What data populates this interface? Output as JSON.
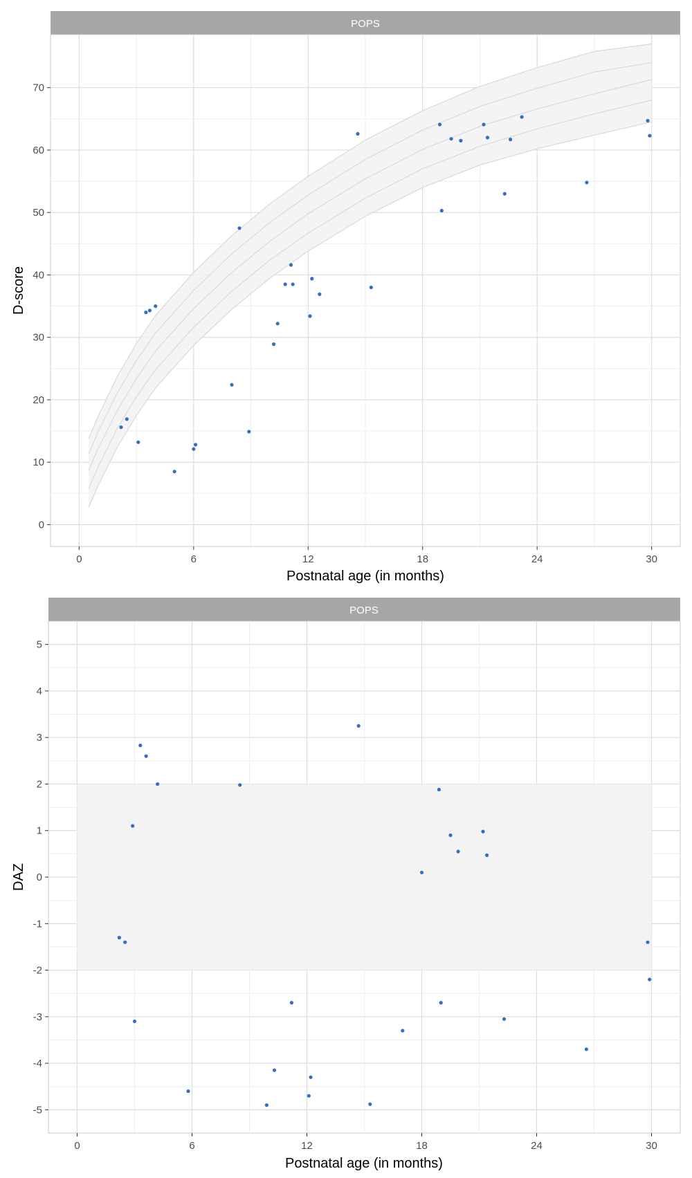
{
  "colors": {
    "points": "#1f5fbf",
    "strip": "#a6a6a6",
    "strip_text": "#ffffff",
    "grid_major": "#dcdcdc",
    "grid_minor": "#eeeeee",
    "band": "#f2f2f2",
    "reference_curve": "#d9d9d9"
  },
  "chart_data": [
    {
      "type": "scatter",
      "facet_label": "POPS",
      "xlabel": "Postnatal age (in months)",
      "ylabel": "D-score",
      "xlim": [
        -1.5,
        31.5
      ],
      "ylim": [
        -3.5,
        78.5
      ],
      "xticks": [
        0,
        6,
        12,
        18,
        24,
        30
      ],
      "xtick_labels": [
        "0",
        "6",
        "12",
        "18",
        "24",
        "30"
      ],
      "yticks": [
        0,
        10,
        20,
        30,
        40,
        50,
        60,
        70
      ],
      "ytick_labels": [
        "0",
        "10",
        "20",
        "30",
        "40",
        "50",
        "60",
        "70"
      ],
      "grid": true,
      "reference_band": {
        "x": [
          0.5,
          1,
          2,
          3,
          4,
          6,
          8,
          10,
          12,
          15,
          18,
          21,
          24,
          27,
          30
        ],
        "curves": [
          [
            2.8,
            6.3,
            12.4,
            17.5,
            21.9,
            28.7,
            34.5,
            39.5,
            43.8,
            49.4,
            54.0,
            57.6,
            60.2,
            62.4,
            64.5
          ],
          [
            5.8,
            9.3,
            15.4,
            20.5,
            24.8,
            31.6,
            37.4,
            42.4,
            46.7,
            52.3,
            57.0,
            60.6,
            63.4,
            65.8,
            68.0
          ],
          [
            8.7,
            12.2,
            18.3,
            23.4,
            27.8,
            34.6,
            40.4,
            45.4,
            49.8,
            55.4,
            60.1,
            63.8,
            66.6,
            69.0,
            71.3
          ],
          [
            11.3,
            14.9,
            21.1,
            26.3,
            30.7,
            37.5,
            43.4,
            48.4,
            52.8,
            58.5,
            63.2,
            67.0,
            69.9,
            72.5,
            74.0
          ],
          [
            13.8,
            17.4,
            23.7,
            29.0,
            33.5,
            40.4,
            46.3,
            51.4,
            55.8,
            61.6,
            66.3,
            70.2,
            73.2,
            75.8,
            77.0
          ]
        ]
      },
      "clusters": [
        {
          "x": 2.2,
          "y": 15.6
        },
        {
          "x": 2.5,
          "y": 16.9
        },
        {
          "x": 3.1,
          "y": 13.2
        },
        {
          "x": 3.5,
          "y": 34.0
        },
        {
          "x": 3.7,
          "y": 34.3
        },
        {
          "x": 4.0,
          "y": 35.0
        },
        {
          "x": 5.0,
          "y": 8.5
        },
        {
          "x": 6.0,
          "y": 12.1
        },
        {
          "x": 6.1,
          "y": 12.8
        },
        {
          "x": 8.0,
          "y": 22.4
        },
        {
          "x": 8.4,
          "y": 47.5
        },
        {
          "x": 8.9,
          "y": 14.9
        },
        {
          "x": 10.2,
          "y": 28.9
        },
        {
          "x": 10.4,
          "y": 32.2
        },
        {
          "x": 10.8,
          "y": 38.5
        },
        {
          "x": 11.1,
          "y": 41.6
        },
        {
          "x": 11.2,
          "y": 38.5
        },
        {
          "x": 12.1,
          "y": 33.4
        },
        {
          "x": 12.2,
          "y": 39.4
        },
        {
          "x": 12.6,
          "y": 36.9
        },
        {
          "x": 14.6,
          "y": 62.6
        },
        {
          "x": 15.3,
          "y": 38.0
        },
        {
          "x": 18.9,
          "y": 64.1
        },
        {
          "x": 19.0,
          "y": 50.3
        },
        {
          "x": 19.5,
          "y": 61.8
        },
        {
          "x": 20.0,
          "y": 61.5
        },
        {
          "x": 21.2,
          "y": 64.1
        },
        {
          "x": 21.4,
          "y": 62.0
        },
        {
          "x": 22.3,
          "y": 53.0
        },
        {
          "x": 22.6,
          "y": 61.7
        },
        {
          "x": 23.2,
          "y": 65.3
        },
        {
          "x": 26.6,
          "y": 54.8
        },
        {
          "x": 29.8,
          "y": 64.7
        },
        {
          "x": 29.9,
          "y": 62.3
        }
      ]
    },
    {
      "type": "scatter",
      "facet_label": "POPS",
      "xlabel": "Postnatal age (in months)",
      "ylabel": "DAZ",
      "xlim": [
        -1.5,
        31.5
      ],
      "ylim": [
        -5.5,
        5.5
      ],
      "xticks": [
        0,
        6,
        12,
        18,
        24,
        30
      ],
      "xtick_labels": [
        "0",
        "6",
        "12",
        "18",
        "24",
        "30"
      ],
      "yticks": [
        -5,
        -4,
        -3,
        -2,
        -1,
        0,
        1,
        2,
        3,
        4,
        5
      ],
      "ytick_labels": [
        "-5",
        "-4",
        "-3",
        "-2",
        "-1",
        "0",
        "1",
        "2",
        "3",
        "4",
        "5"
      ],
      "grid": true,
      "reference_band": {
        "y_range": [
          -2,
          2
        ]
      },
      "clusters": [
        {
          "x": 2.2,
          "y": -1.3
        },
        {
          "x": 2.5,
          "y": -1.4
        },
        {
          "x": 2.9,
          "y": 1.1
        },
        {
          "x": 3.0,
          "y": -3.1
        },
        {
          "x": 3.3,
          "y": 2.83
        },
        {
          "x": 3.6,
          "y": 2.6
        },
        {
          "x": 4.2,
          "y": 2.0
        },
        {
          "x": 5.8,
          "y": -4.6
        },
        {
          "x": 8.5,
          "y": 1.98
        },
        {
          "x": 9.9,
          "y": -4.9
        },
        {
          "x": 10.3,
          "y": -4.15
        },
        {
          "x": 11.2,
          "y": -2.7
        },
        {
          "x": 12.1,
          "y": -4.7
        },
        {
          "x": 12.2,
          "y": -4.3
        },
        {
          "x": 14.7,
          "y": 3.25
        },
        {
          "x": 15.3,
          "y": -4.88
        },
        {
          "x": 17.0,
          "y": -3.3
        },
        {
          "x": 18.0,
          "y": 0.1
        },
        {
          "x": 18.9,
          "y": 1.88
        },
        {
          "x": 19.0,
          "y": -2.7
        },
        {
          "x": 19.5,
          "y": 0.9
        },
        {
          "x": 19.9,
          "y": 0.55
        },
        {
          "x": 21.2,
          "y": 0.98
        },
        {
          "x": 21.4,
          "y": 0.47
        },
        {
          "x": 22.3,
          "y": -3.05
        },
        {
          "x": 26.6,
          "y": -3.7
        },
        {
          "x": 29.8,
          "y": -1.4
        },
        {
          "x": 29.9,
          "y": -2.2
        }
      ]
    }
  ]
}
